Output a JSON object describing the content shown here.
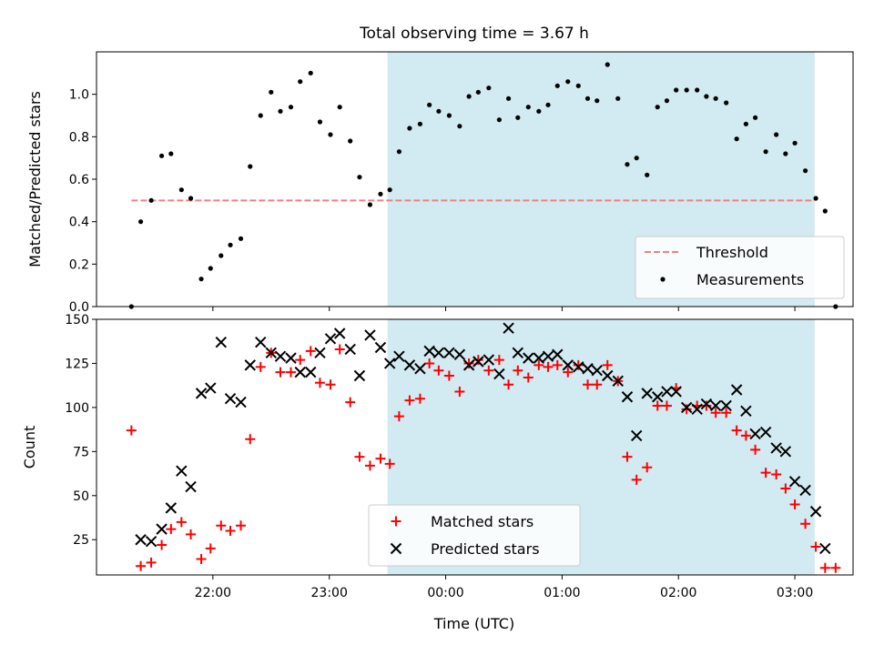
{
  "chart_data": {
    "title": "Total observing time = 3.67 h",
    "xlabel": "Time (UTC)",
    "x_unit": "hours after 21:00 UTC",
    "x_ticks": [
      {
        "x": 1.0,
        "label": "22:00"
      },
      {
        "x": 2.0,
        "label": "23:00"
      },
      {
        "x": 3.0,
        "label": "00:00"
      },
      {
        "x": 4.0,
        "label": "01:00"
      },
      {
        "x": 5.0,
        "label": "02:00"
      },
      {
        "x": 6.0,
        "label": "03:00"
      }
    ],
    "xlim": [
      0.0,
      6.5
    ],
    "shaded_interval": {
      "x": [
        2.5,
        6.17
      ],
      "color": "#add8e6"
    },
    "panels": [
      {
        "type": "scatter",
        "ylabel": "Matched/Predicted stars",
        "ylim": [
          0,
          1.2
        ],
        "y_ticks": [
          "0.0",
          "0.2",
          "0.4",
          "0.6",
          "0.8",
          "1.0"
        ],
        "threshold": {
          "name": "Threshold",
          "y": 0.5,
          "x": [
            0.3,
            6.17
          ],
          "color": "#f08080"
        },
        "legend": {
          "position": "lower right",
          "entries": [
            "Threshold",
            "Measurements"
          ]
        },
        "series": [
          {
            "name": "Measurements",
            "color": "#000000",
            "marker": "dot",
            "x": [
              0.3,
              0.38,
              0.47,
              0.56,
              0.64,
              0.73,
              0.81,
              0.9,
              0.98,
              1.07,
              1.15,
              1.24,
              1.32,
              1.41,
              1.5,
              1.58,
              1.67,
              1.75,
              1.84,
              1.92,
              2.01,
              2.09,
              2.18,
              2.26,
              2.35,
              2.44,
              2.52,
              2.6,
              2.69,
              2.78,
              2.86,
              2.94,
              3.03,
              3.12,
              3.2,
              3.28,
              3.37,
              3.46,
              3.54,
              3.62,
              3.71,
              3.8,
              3.88,
              3.96,
              4.05,
              4.14,
              4.22,
              4.3,
              4.39,
              4.48,
              4.56,
              4.64,
              4.73,
              4.82,
              4.9,
              4.98,
              5.07,
              5.16,
              5.24,
              5.32,
              5.41,
              5.5,
              5.58,
              5.66,
              5.75,
              5.84,
              5.92,
              6.0,
              6.09,
              6.18,
              6.26,
              6.35
            ],
            "y": [
              0.0,
              0.4,
              0.5,
              0.71,
              0.72,
              0.55,
              0.51,
              0.13,
              0.18,
              0.24,
              0.29,
              0.32,
              0.66,
              0.9,
              1.01,
              0.92,
              0.94,
              1.06,
              1.1,
              0.87,
              0.81,
              0.94,
              0.78,
              0.61,
              0.48,
              0.53,
              0.55,
              0.73,
              0.84,
              0.86,
              0.95,
              0.92,
              0.9,
              0.85,
              0.99,
              1.01,
              1.03,
              0.88,
              0.98,
              0.89,
              0.94,
              0.92,
              0.95,
              1.04,
              1.06,
              1.04,
              0.98,
              0.97,
              1.14,
              0.98,
              0.67,
              0.7,
              0.62,
              0.94,
              0.97,
              1.02,
              1.02,
              1.02,
              0.99,
              0.98,
              0.96,
              0.79,
              0.86,
              0.89,
              0.73,
              0.81,
              0.72,
              0.77,
              0.64,
              0.51,
              0.45,
              0.0
            ]
          }
        ]
      },
      {
        "type": "scatter",
        "ylabel": "Count",
        "ylim": [
          5,
          150
        ],
        "y_ticks": [
          "25",
          "50",
          "75",
          "100",
          "125",
          "150"
        ],
        "legend": {
          "position": "lower center",
          "entries": [
            "Matched stars",
            "Predicted stars"
          ]
        },
        "series": [
          {
            "name": "Matched stars",
            "color": "#ff0000",
            "marker": "plus",
            "x": [
              0.3,
              0.38,
              0.47,
              0.56,
              0.64,
              0.73,
              0.81,
              0.9,
              0.98,
              1.07,
              1.15,
              1.24,
              1.32,
              1.41,
              1.5,
              1.58,
              1.67,
              1.75,
              1.84,
              1.92,
              2.01,
              2.09,
              2.18,
              2.26,
              2.35,
              2.44,
              2.52,
              2.6,
              2.69,
              2.78,
              2.86,
              2.94,
              3.03,
              3.12,
              3.2,
              3.28,
              3.37,
              3.46,
              3.54,
              3.62,
              3.71,
              3.8,
              3.88,
              3.96,
              4.05,
              4.14,
              4.22,
              4.3,
              4.39,
              4.48,
              4.56,
              4.64,
              4.73,
              4.82,
              4.9,
              4.98,
              5.07,
              5.16,
              5.24,
              5.32,
              5.41,
              5.5,
              5.58,
              5.66,
              5.75,
              5.84,
              5.92,
              6.0,
              6.09,
              6.18,
              6.26,
              6.35
            ],
            "y": [
              87,
              10,
              12,
              22,
              31,
              35,
              28,
              14,
              20,
              33,
              30,
              33,
              82,
              123,
              131,
              120,
              120,
              127,
              132,
              114,
              113,
              133,
              103,
              72,
              67,
              71,
              68,
              95,
              104,
              105,
              125,
              121,
              118,
              109,
              125,
              127,
              121,
              127,
              113,
              121,
              117,
              124,
              123,
              124,
              120,
              124,
              113,
              113,
              124,
              115,
              72,
              59,
              66,
              101,
              101,
              111,
              99,
              101,
              101,
              97,
              97,
              87,
              84,
              76,
              63,
              62,
              54,
              45,
              34,
              21,
              9,
              9
            ]
          },
          {
            "name": "Predicted stars",
            "color": "#000000",
            "marker": "x",
            "x": [
              0.38,
              0.47,
              0.56,
              0.64,
              0.73,
              0.81,
              0.9,
              0.98,
              1.07,
              1.15,
              1.24,
              1.32,
              1.41,
              1.5,
              1.58,
              1.67,
              1.75,
              1.84,
              1.92,
              2.01,
              2.09,
              2.18,
              2.26,
              2.35,
              2.44,
              2.52,
              2.6,
              2.69,
              2.78,
              2.86,
              2.94,
              3.03,
              3.12,
              3.2,
              3.28,
              3.37,
              3.46,
              3.54,
              3.62,
              3.71,
              3.8,
              3.88,
              3.96,
              4.05,
              4.14,
              4.22,
              4.3,
              4.39,
              4.48,
              4.56,
              4.64,
              4.73,
              4.82,
              4.9,
              4.98,
              5.07,
              5.16,
              5.24,
              5.32,
              5.41,
              5.5,
              5.58,
              5.66,
              5.75,
              5.84,
              5.92,
              6.0,
              6.09,
              6.18,
              6.26
            ],
            "y": [
              25,
              24,
              31,
              43,
              64,
              55,
              108,
              111,
              137,
              105,
              103,
              124,
              137,
              131,
              129,
              128,
              120,
              120,
              131,
              139,
              142,
              133,
              118,
              141,
              134,
              125,
              129,
              124,
              122,
              132,
              131,
              131,
              130,
              124,
              126,
              127,
              119,
              145,
              131,
              128,
              128,
              129,
              130,
              124,
              123,
              122,
              121,
              118,
              115,
              106,
              84,
              108,
              106,
              109,
              109,
              100,
              99,
              102,
              101,
              101,
              110,
              98,
              85,
              86,
              77,
              75,
              58,
              53,
              41,
              20
            ]
          }
        ]
      }
    ]
  }
}
